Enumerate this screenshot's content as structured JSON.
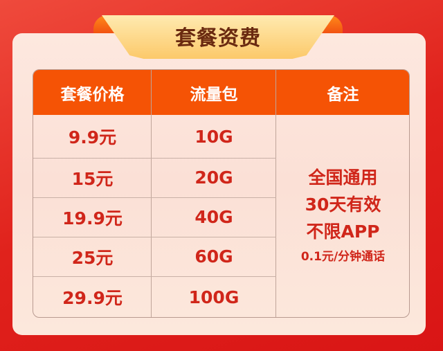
{
  "title": "套餐资费",
  "headers": [
    "套餐价格",
    "流量包",
    "备注"
  ],
  "rows": [
    {
      "price": "9.9元",
      "data": "10G"
    },
    {
      "price": "15元",
      "data": "20G"
    },
    {
      "price": "19.9元",
      "data": "40G"
    },
    {
      "price": "25元",
      "data": "60G"
    },
    {
      "price": "29.9元",
      "data": "100G"
    }
  ],
  "notes": [
    "全国通用",
    "30天有效",
    "不限APP",
    "0.1元/分钟通话"
  ],
  "colors": {
    "background": "#e0221c",
    "header": "#f55305",
    "text": "#d0261a",
    "title": "#6a2a10"
  }
}
